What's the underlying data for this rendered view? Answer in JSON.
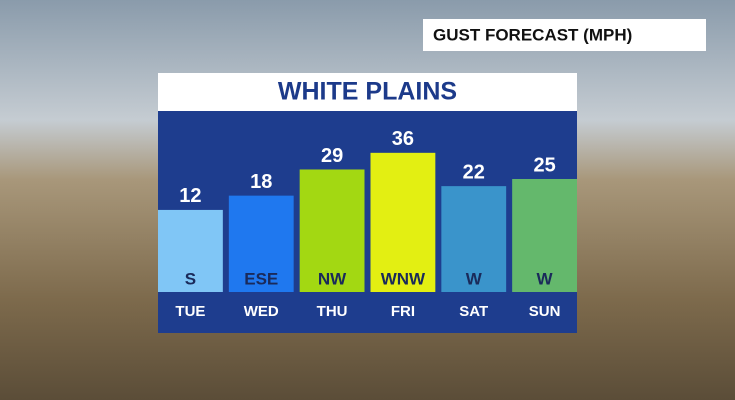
{
  "chart_data": {
    "type": "bar",
    "header": "GUST FORECAST (MPH)",
    "title": "WHITE PLAINS",
    "categories": [
      "TUE",
      "WED",
      "THU",
      "FRI",
      "SAT",
      "SUN"
    ],
    "values": [
      12,
      18,
      29,
      36,
      22,
      25
    ],
    "directions": [
      "S",
      "ESE",
      "NW",
      "WNW",
      "W",
      "W"
    ],
    "colors": [
      "#80c6f6",
      "#1f78ef",
      "#a3d812",
      "#e3ef12",
      "#3a94cb",
      "#64b86c"
    ],
    "ylim": [
      -22.5,
      54
    ]
  }
}
